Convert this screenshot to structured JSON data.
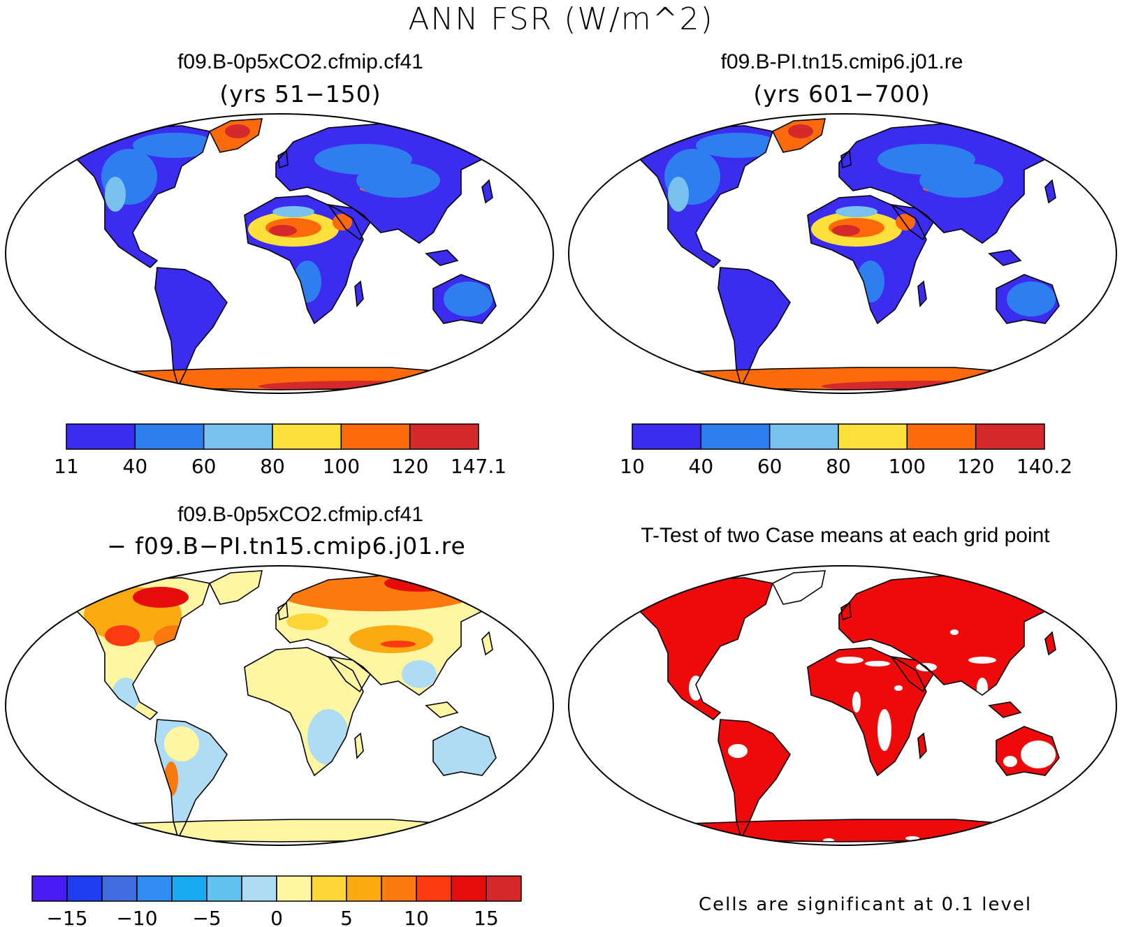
{
  "title": "ANN FSR (W/m^2)",
  "panels": [
    {
      "title": "f09.B-0p5xCO2.cfmip.cf41",
      "subtitle": "(yrs 51−150)",
      "colorbar": {
        "colors": [
          "#3b2cf0",
          "#2f7ef0",
          "#79c2f0",
          "#fde03a",
          "#fd6a0c",
          "#d6292b"
        ],
        "labels": [
          "11",
          "40",
          "60",
          "80",
          "100",
          "120",
          "147.1"
        ]
      }
    },
    {
      "title": "f09.B-PI.tn15.cmip6.j01.re",
      "subtitle": "(yrs 601−700)",
      "colorbar": {
        "colors": [
          "#3b2cf0",
          "#2f7ef0",
          "#79c2f0",
          "#fde03a",
          "#fd6a0c",
          "#d6292b"
        ],
        "labels": [
          "10",
          "40",
          "60",
          "80",
          "100",
          "120",
          "140.2"
        ]
      }
    },
    {
      "title": "f09.B-0p5xCO2.cfmip.cf41",
      "subtitle": "− f09.B−PI.tn15.cmip6.j01.re",
      "colorbar": {
        "colors": [
          "#4a1cf2",
          "#1f3ef0",
          "#3f6de0",
          "#2f8cf0",
          "#1aaaf2",
          "#62c3f0",
          "#aedcf4",
          "#fef6a2",
          "#fdd536",
          "#fbaa12",
          "#fb7a10",
          "#fb3a10",
          "#e50c0c",
          "#d6292b"
        ],
        "labels": [
          "−15",
          "−10",
          "−5",
          "0",
          "5",
          "10",
          "15"
        ]
      }
    },
    {
      "title": "T-Test of two Case means at each grid point",
      "note": "Cells are significant at 0.1 level"
    }
  ]
}
